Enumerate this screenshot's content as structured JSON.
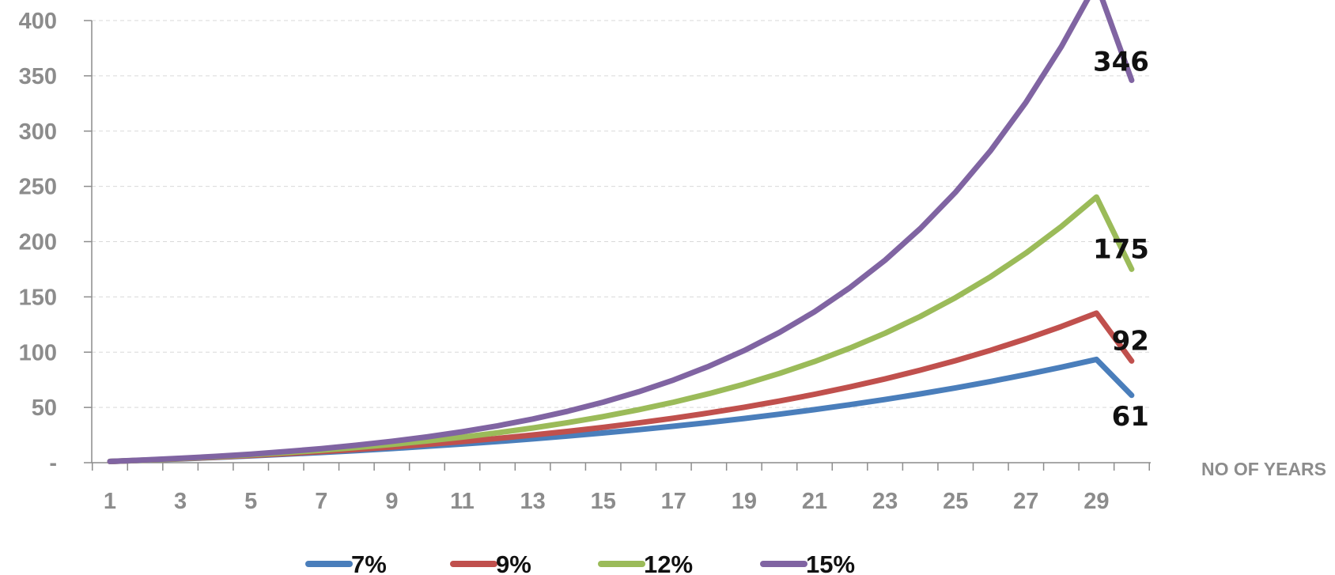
{
  "chart_data": {
    "type": "line",
    "title": "",
    "xlabel": "NO OF YEARS",
    "ylabel": "",
    "x": [
      1,
      2,
      3,
      4,
      5,
      6,
      7,
      8,
      9,
      10,
      11,
      12,
      13,
      14,
      15,
      16,
      17,
      18,
      19,
      20,
      21,
      22,
      23,
      24,
      25,
      26,
      27,
      28,
      29,
      30
    ],
    "x_tick_labels": [
      "1",
      "3",
      "5",
      "7",
      "9",
      "11",
      "13",
      "15",
      "17",
      "19",
      "21",
      "23",
      "25",
      "27",
      "29"
    ],
    "y_tick_labels": [
      "-",
      "50",
      "100",
      "150",
      "200",
      "250",
      "300",
      "350",
      "400"
    ],
    "ylim": [
      0,
      400
    ],
    "grid": true,
    "legend_position": "bottom",
    "series": [
      {
        "name": "7%",
        "color": "#4a7ebb",
        "end_label": "61",
        "values": [
          1.07,
          2.21,
          3.44,
          4.75,
          6.15,
          7.65,
          9.26,
          10.98,
          12.82,
          14.78,
          16.89,
          19.14,
          21.55,
          24.13,
          26.89,
          29.84,
          33.0,
          36.38,
          39.99,
          43.87,
          48.01,
          52.44,
          57.18,
          62.25,
          67.68,
          73.48,
          79.7,
          86.35,
          93.46,
          61.0
        ]
      },
      {
        "name": "9%",
        "color": "#c0504d",
        "end_label": "92",
        "values": [
          1.09,
          2.28,
          3.57,
          4.98,
          6.52,
          8.2,
          10.03,
          12.02,
          14.19,
          16.56,
          19.14,
          21.95,
          25.02,
          28.36,
          32.0,
          35.97,
          40.3,
          45.02,
          50.16,
          55.76,
          61.87,
          68.53,
          75.79,
          83.7,
          92.32,
          101.72,
          111.97,
          123.14,
          135.31,
          92.0
        ]
      },
      {
        "name": "12%",
        "color": "#9bbb59",
        "end_label": "175",
        "values": [
          1.12,
          2.37,
          3.78,
          5.35,
          7.12,
          9.09,
          11.3,
          13.78,
          16.55,
          19.65,
          23.13,
          27.03,
          31.39,
          36.28,
          41.75,
          47.88,
          54.75,
          62.44,
          71.05,
          80.7,
          91.5,
          103.6,
          117.16,
          132.33,
          149.33,
          168.37,
          189.7,
          213.58,
          240.33,
          175.0
        ]
      },
      {
        "name": "15%",
        "color": "#8064a2",
        "end_label": "346",
        "values": [
          1.15,
          2.47,
          3.99,
          5.74,
          7.75,
          10.07,
          12.73,
          15.79,
          19.3,
          23.35,
          28.0,
          33.35,
          39.5,
          46.58,
          54.72,
          64.08,
          74.84,
          87.21,
          101.44,
          117.81,
          136.63,
          158.28,
          183.17,
          211.8,
          244.71,
          282.57,
          326.1,
          376.17,
          433.75,
          346.0
        ]
      }
    ]
  }
}
